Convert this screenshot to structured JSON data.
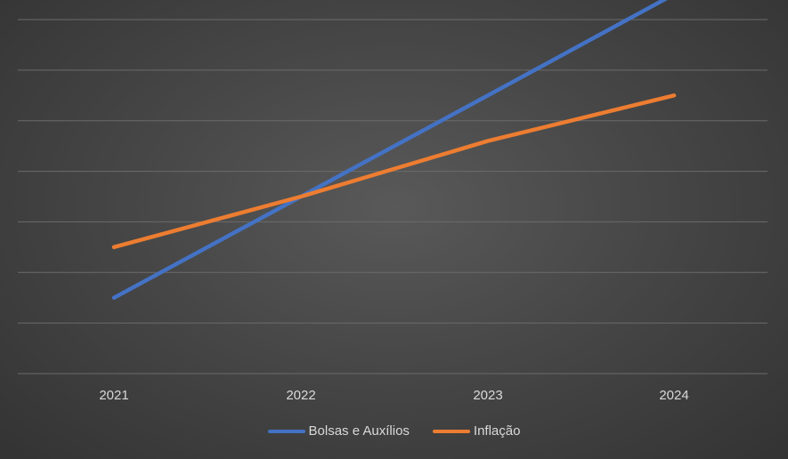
{
  "chart_data": {
    "type": "line",
    "categories": [
      "2021",
      "2022",
      "2023",
      "2024"
    ],
    "series": [
      {
        "name": "Bolsas e Auxílios",
        "color": "#4472C4",
        "values": [
          0.5,
          2.5,
          4.5,
          6.5
        ]
      },
      {
        "name": "Inflação",
        "color": "#ED7D31",
        "values": [
          1.5,
          2.5,
          3.6,
          4.5
        ]
      }
    ],
    "ylim": [
      -1,
      6.0
    ],
    "y_gridlines": 8,
    "grid": true,
    "legend": "bottom",
    "title": "",
    "xlabel": "",
    "ylabel": "",
    "background": "#474747",
    "gridline_color": "#6b6b6b"
  },
  "legend": {
    "items": [
      {
        "label": "Bolsas e Auxílios",
        "color": "#4472C4"
      },
      {
        "label": "Inflação",
        "color": "#ED7D31"
      }
    ]
  }
}
